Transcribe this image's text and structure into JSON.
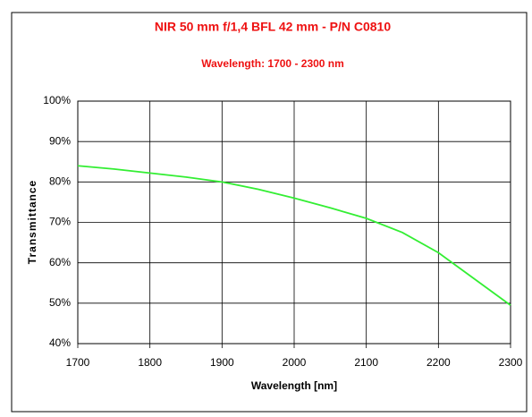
{
  "chart_data": {
    "type": "line",
    "title": "NIR 50 mm f/1,4 BFL  42 mm - P/N C0810",
    "subtitle": "Wavelength: 1700 - 2300 nm",
    "x_label": "Wavelength [nm]",
    "y_label": "Transmittance",
    "x": [
      1700,
      1750,
      1800,
      1850,
      1900,
      1950,
      2000,
      2050,
      2100,
      2150,
      2200,
      2250,
      2300
    ],
    "series": [
      {
        "name": "Transmittance",
        "color": "#33ee33",
        "values": [
          84,
          83.2,
          82.2,
          81.2,
          80,
          78.2,
          76,
          73.6,
          71,
          67.5,
          62.5,
          56,
          49.5
        ]
      }
    ],
    "xlim": [
      1700,
      2300
    ],
    "xticks": [
      1700,
      1800,
      1900,
      2000,
      2100,
      2200,
      2300
    ],
    "ylim": [
      40,
      100
    ],
    "yticks": [
      {
        "value": 40,
        "label": "40%"
      },
      {
        "value": 50,
        "label": "50%"
      },
      {
        "value": 60,
        "label": "60%"
      },
      {
        "value": 70,
        "label": "70%"
      },
      {
        "value": 80,
        "label": "80%"
      },
      {
        "value": 90,
        "label": "90%"
      },
      {
        "value": 100,
        "label": "100%"
      }
    ],
    "grid": true
  }
}
